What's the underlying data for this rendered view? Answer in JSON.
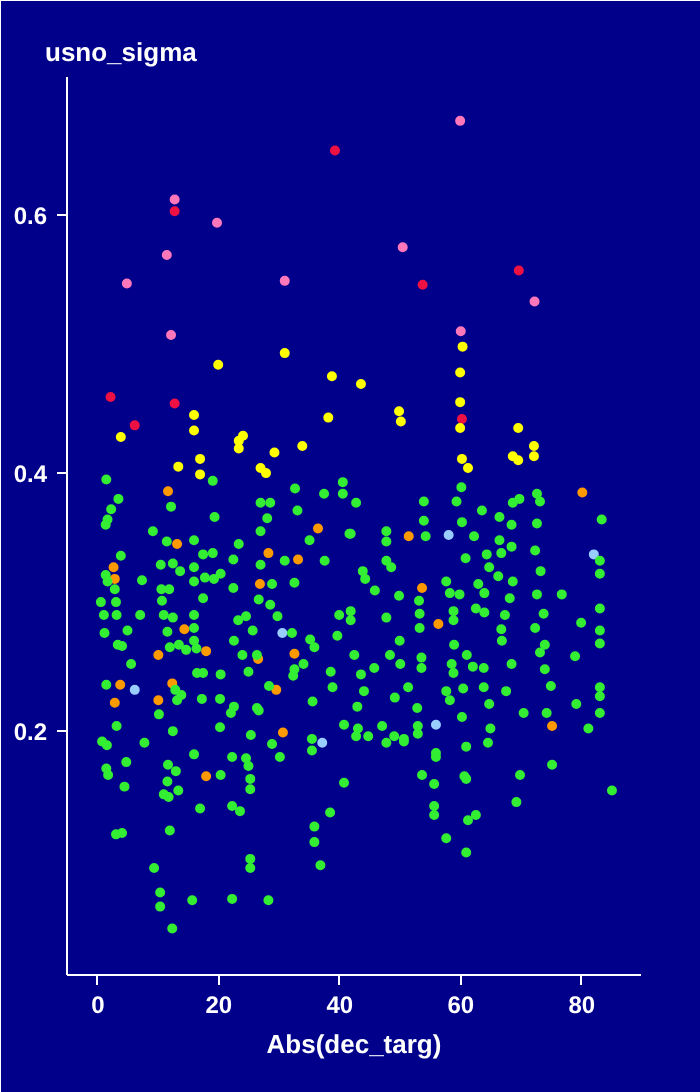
{
  "chart_data": {
    "type": "scatter",
    "ylabel": "usno_sigma",
    "xlabel": "Abs(dec_targ)",
    "xlim": [
      -5.1,
      89.8
    ],
    "ylim": [
      0.011,
      0.707
    ],
    "xticks": [
      0,
      20,
      40,
      60,
      80
    ],
    "yticks": [
      {
        "value": 0.2,
        "label": "0.2"
      },
      {
        "value": 0.4,
        "label": "0.4"
      },
      {
        "value": 0.6,
        "label": "0.6"
      }
    ],
    "grid": false,
    "marker": "circle",
    "series": [
      {
        "color": "#ff77bb",
        "x": [
          59.9,
          12.7,
          19.7,
          11.4,
          50.4,
          72.2,
          4.8,
          30.9,
          12.1,
          60.0
        ],
        "values": [
          0.673,
          0.612,
          0.594,
          0.569,
          0.575,
          0.533,
          0.547,
          0.549,
          0.507,
          0.51
        ]
      },
      {
        "color": "#ee1144",
        "x": [
          39.2,
          12.7,
          53.7,
          69.6,
          2.1,
          12.7,
          6.1,
          60.2
        ],
        "values": [
          0.65,
          0.603,
          0.546,
          0.557,
          0.459,
          0.454,
          0.437,
          0.442
        ]
      },
      {
        "color": "#ffff00",
        "x": [
          30.9,
          60.3,
          19.9,
          38.7,
          38.1,
          15.9,
          3.8,
          15.9,
          24.0,
          23.3,
          23.3,
          29.2,
          33.8,
          16.9,
          13.3,
          26.9,
          27.8,
          16.9,
          43.5,
          59.9,
          49.8,
          50.1,
          59.9,
          59.9,
          69.5,
          72.1,
          72.1,
          68.6,
          69.5,
          60.2,
          61.2
        ],
        "values": [
          0.493,
          0.498,
          0.484,
          0.475,
          0.443,
          0.445,
          0.428,
          0.433,
          0.429,
          0.425,
          0.419,
          0.416,
          0.421,
          0.411,
          0.405,
          0.404,
          0.4,
          0.399,
          0.469,
          0.478,
          0.448,
          0.44,
          0.455,
          0.435,
          0.435,
          0.421,
          0.413,
          0.413,
          0.41,
          0.411,
          0.404
        ]
      },
      {
        "color": "#ff9900",
        "x": [
          80.1,
          51.4,
          53.6,
          56.3,
          11.6,
          36.4,
          13.1,
          28.2,
          33.1,
          2.6,
          2.8,
          26.8,
          14.3,
          17.9,
          10.0,
          32.5,
          26.5,
          3.7,
          12.3,
          2.8,
          10.0,
          29.5,
          30.6,
          75.1,
          17.9
        ],
        "values": [
          0.385,
          0.351,
          0.311,
          0.283,
          0.386,
          0.357,
          0.345,
          0.338,
          0.333,
          0.327,
          0.318,
          0.314,
          0.279,
          0.262,
          0.259,
          0.26,
          0.256,
          0.236,
          0.237,
          0.222,
          0.224,
          0.232,
          0.199,
          0.204,
          0.165
        ]
      },
      {
        "color": "#99ccff",
        "x": [
          82.0,
          58.0,
          30.5,
          6.1,
          37.1,
          55.9
        ],
        "values": [
          0.337,
          0.352,
          0.276,
          0.232,
          0.191,
          0.205
        ]
      },
      {
        "color": "#33ee33",
        "x": [
          3.1,
          0.7,
          1.5,
          1.4,
          1.7,
          4.7,
          4.4,
          7.7,
          3.0,
          4.0,
          9.3,
          10.3,
          10.3,
          12.3,
          11.9,
          11.6,
          12.9,
          11.5,
          10.9,
          11.7,
          13.3,
          12.4,
          15.9,
          16.9,
          15.6,
          20.2,
          20.3,
          22.2,
          22.2,
          23.5,
          22.2,
          24.5,
          24.9,
          25.2,
          25.2,
          25.3,
          25.2,
          25.2,
          28.2,
          28.8,
          30.1,
          35.4,
          35.4,
          35.8,
          35.8,
          38.4,
          36.8,
          40.7,
          40.7,
          43.0,
          42.7,
          44.7,
          47.0,
          47.7,
          49.0,
          50.6,
          50.6,
          52.9,
          52.9,
          53.6,
          55.6,
          55.9,
          55.9,
          55.6,
          55.6,
          57.6,
          60.9,
          60.6,
          60.9,
          61.2,
          62.5,
          60.9,
          64.9,
          64.5,
          69.2,
          69.8,
          75.1,
          81.1,
          85.0,
          1.4,
          3.4,
          2.2,
          1.6,
          1.3,
          12.1,
          9.1,
          11.4,
          3.8,
          1.3,
          1.6,
          0.5,
          3.0,
          1.0,
          3.1,
          1.1,
          2.8,
          7.3,
          7.0,
          4.9,
          3.3,
          4.0,
          5.5,
          1.4,
          10.4,
          12.4,
          13.6,
          10.5,
          11.8,
          10.9,
          10.6,
          12.4,
          11.5,
          11.9,
          13.4,
          12.8,
          10.1,
          13.1,
          13.8,
          15.9,
          15.9,
          15.9,
          15.9,
          15.9,
          15.9,
          16.3,
          17.4,
          17.4,
          19.0,
          19.0,
          17.7,
          19.2,
          20.3,
          19.3,
          14.6,
          17.4,
          16.4,
          17.2,
          20.3,
          20.2,
          22.0,
          22.5,
          22.4,
          23.3,
          22.4,
          24.5,
          25.6,
          23.2,
          22.5,
          23.9,
          24.9,
          26.3,
          26.9,
          28.0,
          28.5,
          26.9,
          26.9,
          26.6,
          28.5,
          29.7,
          28.8,
          28.3,
          26.3,
          26.6,
          32.6,
          33.0,
          35.0,
          30.9,
          32.5,
          32.1,
          35.1,
          34.0,
          32.5,
          35.5,
          32.3,
          37.4,
          40.5,
          40.5,
          37.5,
          39.6,
          38.5,
          38.8,
          39.9,
          41.6,
          35.8,
          42.7,
          41.8,
          43.8,
          44.2,
          41.8,
          41.8,
          42.4,
          43.5,
          44.0,
          42.9,
          45.8,
          45.7,
          48.3,
          47.7,
          47.7,
          47.7,
          48.5,
          47.7,
          49.8,
          49.9,
          50.0,
          49.1,
          53.9,
          53.9,
          54.2,
          53.1,
          53.2,
          53.2,
          53.5,
          53.5,
          51.3,
          52.8,
          57.6,
          58.2,
          59.8,
          58.8,
          58.8,
          58.9,
          58.5,
          57.6,
          58.2,
          60.4,
          60.1,
          60.2,
          59.3,
          63.5,
          62.2,
          64.3,
          64.7,
          60.8,
          62.9,
          63.9,
          62.5,
          63.9,
          61.0,
          63.8,
          62.0,
          63.8,
          64.7,
          60.2,
          58.8,
          66.4,
          68.6,
          69.7,
          68.4,
          66.4,
          66.7,
          68.4,
          68.6,
          66.2,
          68.1,
          67.3,
          66.7,
          66.8,
          68.4,
          67.5,
          70.4,
          72.6,
          73.1,
          72.6,
          72.3,
          73.2,
          72.6,
          73.7,
          72.3,
          73.9,
          73.1,
          73.9,
          74.9,
          74.2,
          76.7,
          79.9,
          78.9,
          79.1,
          83.3,
          83.0,
          83.0,
          83.0,
          83.0,
          83.0,
          83.0,
          83.0,
          83.0
        ],
        "values": [
          0.204,
          0.192,
          0.189,
          0.171,
          0.166,
          0.176,
          0.157,
          0.191,
          0.12,
          0.121,
          0.094,
          0.075,
          0.064,
          0.047,
          0.123,
          0.174,
          0.169,
          0.161,
          0.151,
          0.149,
          0.154,
          0.2,
          0.182,
          0.14,
          0.069,
          0.203,
          0.166,
          0.18,
          0.142,
          0.138,
          0.07,
          0.179,
          0.173,
          0.163,
          0.155,
          0.197,
          0.101,
          0.094,
          0.069,
          0.19,
          0.18,
          0.194,
          0.185,
          0.126,
          0.114,
          0.137,
          0.096,
          0.16,
          0.205,
          0.202,
          0.196,
          0.196,
          0.204,
          0.191,
          0.196,
          0.194,
          0.192,
          0.204,
          0.198,
          0.166,
          0.159,
          0.183,
          0.18,
          0.142,
          0.135,
          0.117,
          0.188,
          0.165,
          0.163,
          0.131,
          0.135,
          0.106,
          0.202,
          0.191,
          0.145,
          0.166,
          0.174,
          0.202,
          0.154,
          0.395,
          0.38,
          0.372,
          0.364,
          0.36,
          0.374,
          0.355,
          0.347,
          0.336,
          0.321,
          0.316,
          0.3,
          0.3,
          0.29,
          0.29,
          0.276,
          0.31,
          0.317,
          0.29,
          0.278,
          0.267,
          0.266,
          0.252,
          0.236,
          0.329,
          0.33,
          0.324,
          0.31,
          0.31,
          0.29,
          0.301,
          0.288,
          0.277,
          0.265,
          0.267,
          0.232,
          0.213,
          0.224,
          0.228,
          0.348,
          0.327,
          0.316,
          0.29,
          0.28,
          0.27,
          0.264,
          0.337,
          0.303,
          0.394,
          0.338,
          0.319,
          0.318,
          0.322,
          0.366,
          0.263,
          0.245,
          0.245,
          0.225,
          0.244,
          0.225,
          0.214,
          0.219,
          0.333,
          0.345,
          0.311,
          0.289,
          0.278,
          0.286,
          0.27,
          0.259,
          0.246,
          0.259,
          0.377,
          0.365,
          0.377,
          0.355,
          0.329,
          0.302,
          0.298,
          0.289,
          0.314,
          0.235,
          0.218,
          0.216,
          0.388,
          0.371,
          0.348,
          0.332,
          0.315,
          0.276,
          0.271,
          0.252,
          0.248,
          0.223,
          0.243,
          0.384,
          0.393,
          0.384,
          0.332,
          0.274,
          0.246,
          0.234,
          0.29,
          0.353,
          0.265,
          0.377,
          0.353,
          0.324,
          0.318,
          0.293,
          0.286,
          0.259,
          0.244,
          0.231,
          0.219,
          0.309,
          0.249,
          0.259,
          0.355,
          0.347,
          0.332,
          0.327,
          0.288,
          0.305,
          0.27,
          0.252,
          0.226,
          0.378,
          0.363,
          0.351,
          0.301,
          0.291,
          0.28,
          0.257,
          0.249,
          0.234,
          0.218,
          0.316,
          0.307,
          0.306,
          0.293,
          0.286,
          0.267,
          0.252,
          0.231,
          0.224,
          0.233,
          0.389,
          0.362,
          0.378,
          0.371,
          0.351,
          0.337,
          0.327,
          0.334,
          0.314,
          0.307,
          0.295,
          0.292,
          0.259,
          0.249,
          0.25,
          0.234,
          0.221,
          0.211,
          0.245,
          0.366,
          0.377,
          0.38,
          0.36,
          0.348,
          0.338,
          0.343,
          0.316,
          0.32,
          0.303,
          0.29,
          0.279,
          0.27,
          0.252,
          0.231,
          0.214,
          0.384,
          0.378,
          0.361,
          0.34,
          0.324,
          0.306,
          0.291,
          0.28,
          0.267,
          0.261,
          0.248,
          0.235,
          0.214,
          0.306,
          0.284,
          0.258,
          0.221,
          0.364,
          0.332,
          0.322,
          0.295,
          0.278,
          0.268,
          0.234,
          0.227,
          0.214
        ]
      }
    ]
  }
}
